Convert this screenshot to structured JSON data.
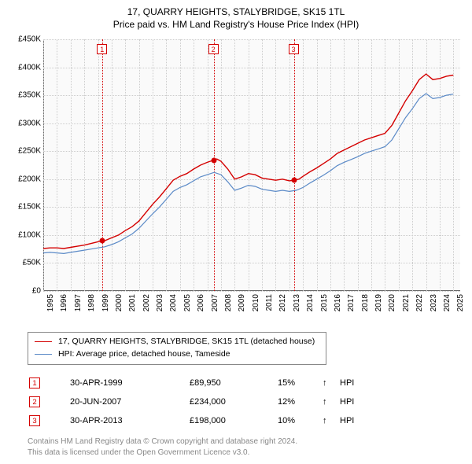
{
  "title": "17, QUARRY HEIGHTS, STALYBRIDGE, SK15 1TL",
  "subtitle": "Price paid vs. HM Land Registry's House Price Index (HPI)",
  "chart": {
    "type": "line",
    "background_color": "#fafafa",
    "grid_color": "#cccccc",
    "axis_color": "#666666",
    "x": {
      "min": 1995,
      "max": 2025.5,
      "ticks": [
        1995,
        1996,
        1997,
        1998,
        1999,
        2000,
        2001,
        2002,
        2003,
        2004,
        2005,
        2006,
        2007,
        2008,
        2009,
        2010,
        2011,
        2012,
        2013,
        2014,
        2015,
        2016,
        2017,
        2018,
        2019,
        2020,
        2021,
        2022,
        2023,
        2024,
        2025
      ]
    },
    "y": {
      "min": 0,
      "max": 450000,
      "tick_step": 50000,
      "labels": [
        "£0",
        "£50K",
        "£100K",
        "£150K",
        "£200K",
        "£250K",
        "£300K",
        "£350K",
        "£400K",
        "£450K"
      ]
    },
    "series": [
      {
        "name": "17, QUARRY HEIGHTS, STALYBRIDGE, SK15 1TL (detached house)",
        "color": "#d40000",
        "width": 1.4,
        "xy": [
          [
            1995.0,
            76000
          ],
          [
            1995.5,
            77000
          ],
          [
            1996.0,
            77000
          ],
          [
            1996.5,
            76000
          ],
          [
            1997.0,
            78000
          ],
          [
            1997.5,
            80000
          ],
          [
            1998.0,
            82000
          ],
          [
            1998.5,
            85000
          ],
          [
            1999.0,
            88000
          ],
          [
            1999.33,
            89950
          ],
          [
            1999.5,
            90000
          ],
          [
            2000.0,
            95000
          ],
          [
            2000.5,
            100000
          ],
          [
            2001.0,
            108000
          ],
          [
            2001.5,
            115000
          ],
          [
            2002.0,
            125000
          ],
          [
            2002.5,
            140000
          ],
          [
            2003.0,
            155000
          ],
          [
            2003.5,
            168000
          ],
          [
            2004.0,
            183000
          ],
          [
            2004.5,
            198000
          ],
          [
            2005.0,
            205000
          ],
          [
            2005.5,
            210000
          ],
          [
            2006.0,
            218000
          ],
          [
            2006.5,
            225000
          ],
          [
            2007.0,
            230000
          ],
          [
            2007.47,
            234000
          ],
          [
            2007.7,
            236000
          ],
          [
            2008.0,
            232000
          ],
          [
            2008.5,
            218000
          ],
          [
            2009.0,
            200000
          ],
          [
            2009.5,
            204000
          ],
          [
            2010.0,
            210000
          ],
          [
            2010.5,
            208000
          ],
          [
            2011.0,
            202000
          ],
          [
            2011.5,
            200000
          ],
          [
            2012.0,
            198000
          ],
          [
            2012.5,
            200000
          ],
          [
            2013.0,
            197000
          ],
          [
            2013.33,
            198000
          ],
          [
            2013.7,
            200000
          ],
          [
            2014.0,
            205000
          ],
          [
            2014.5,
            213000
          ],
          [
            2015.0,
            220000
          ],
          [
            2015.5,
            228000
          ],
          [
            2016.0,
            236000
          ],
          [
            2016.5,
            246000
          ],
          [
            2017.0,
            252000
          ],
          [
            2017.5,
            258000
          ],
          [
            2018.0,
            264000
          ],
          [
            2018.5,
            270000
          ],
          [
            2019.0,
            274000
          ],
          [
            2019.5,
            278000
          ],
          [
            2020.0,
            282000
          ],
          [
            2020.5,
            296000
          ],
          [
            2021.0,
            318000
          ],
          [
            2021.5,
            340000
          ],
          [
            2022.0,
            358000
          ],
          [
            2022.5,
            378000
          ],
          [
            2023.0,
            388000
          ],
          [
            2023.5,
            378000
          ],
          [
            2024.0,
            380000
          ],
          [
            2024.5,
            384000
          ],
          [
            2025.0,
            386000
          ]
        ]
      },
      {
        "name": "HPI: Average price, detached house, Tameside",
        "color": "#5b8ac7",
        "width": 1.2,
        "xy": [
          [
            1995.0,
            68000
          ],
          [
            1995.5,
            69000
          ],
          [
            1996.0,
            68000
          ],
          [
            1996.5,
            67000
          ],
          [
            1997.0,
            69000
          ],
          [
            1997.5,
            71000
          ],
          [
            1998.0,
            73000
          ],
          [
            1998.5,
            75000
          ],
          [
            1999.0,
            77000
          ],
          [
            1999.5,
            79000
          ],
          [
            2000.0,
            83000
          ],
          [
            2000.5,
            88000
          ],
          [
            2001.0,
            95000
          ],
          [
            2001.5,
            102000
          ],
          [
            2002.0,
            112000
          ],
          [
            2002.5,
            125000
          ],
          [
            2003.0,
            138000
          ],
          [
            2003.5,
            150000
          ],
          [
            2004.0,
            164000
          ],
          [
            2004.5,
            178000
          ],
          [
            2005.0,
            185000
          ],
          [
            2005.5,
            190000
          ],
          [
            2006.0,
            197000
          ],
          [
            2006.5,
            204000
          ],
          [
            2007.0,
            208000
          ],
          [
            2007.5,
            212000
          ],
          [
            2008.0,
            208000
          ],
          [
            2008.5,
            195000
          ],
          [
            2009.0,
            180000
          ],
          [
            2009.5,
            184000
          ],
          [
            2010.0,
            189000
          ],
          [
            2010.5,
            187000
          ],
          [
            2011.0,
            182000
          ],
          [
            2011.5,
            180000
          ],
          [
            2012.0,
            178000
          ],
          [
            2012.5,
            180000
          ],
          [
            2013.0,
            178000
          ],
          [
            2013.5,
            180000
          ],
          [
            2014.0,
            185000
          ],
          [
            2014.5,
            193000
          ],
          [
            2015.0,
            200000
          ],
          [
            2015.5,
            207000
          ],
          [
            2016.0,
            215000
          ],
          [
            2016.5,
            224000
          ],
          [
            2017.0,
            230000
          ],
          [
            2017.5,
            235000
          ],
          [
            2018.0,
            240000
          ],
          [
            2018.5,
            246000
          ],
          [
            2019.0,
            250000
          ],
          [
            2019.5,
            254000
          ],
          [
            2020.0,
            258000
          ],
          [
            2020.5,
            270000
          ],
          [
            2021.0,
            290000
          ],
          [
            2021.5,
            310000
          ],
          [
            2022.0,
            326000
          ],
          [
            2022.5,
            344000
          ],
          [
            2023.0,
            353000
          ],
          [
            2023.5,
            344000
          ],
          [
            2024.0,
            346000
          ],
          [
            2024.5,
            350000
          ],
          [
            2025.0,
            352000
          ]
        ]
      }
    ],
    "event_lines": [
      {
        "label": "1",
        "x": 1999.33,
        "color": "#d40000"
      },
      {
        "label": "2",
        "x": 2007.47,
        "color": "#d40000"
      },
      {
        "label": "3",
        "x": 2013.33,
        "color": "#d40000"
      }
    ],
    "event_points": [
      {
        "x": 1999.33,
        "y": 89950,
        "color": "#d40000"
      },
      {
        "x": 2007.47,
        "y": 234000,
        "color": "#d40000"
      },
      {
        "x": 2013.33,
        "y": 198000,
        "color": "#d40000"
      }
    ]
  },
  "legend": {
    "items": [
      {
        "color": "#d40000",
        "label": "17, QUARRY HEIGHTS, STALYBRIDGE, SK15 1TL (detached house)"
      },
      {
        "color": "#5b8ac7",
        "label": "HPI: Average price, detached house, Tameside"
      }
    ]
  },
  "events_table": [
    {
      "badge": "1",
      "badge_color": "#d40000",
      "date": "30-APR-1999",
      "price": "£89,950",
      "pct": "15%",
      "arrow": "↑",
      "tag": "HPI"
    },
    {
      "badge": "2",
      "badge_color": "#d40000",
      "date": "20-JUN-2007",
      "price": "£234,000",
      "pct": "12%",
      "arrow": "↑",
      "tag": "HPI"
    },
    {
      "badge": "3",
      "badge_color": "#d40000",
      "date": "30-APR-2013",
      "price": "£198,000",
      "pct": "10%",
      "arrow": "↑",
      "tag": "HPI"
    }
  ],
  "attribution": {
    "line1": "Contains HM Land Registry data © Crown copyright and database right 2024.",
    "line2": "This data is licensed under the Open Government Licence v3.0."
  }
}
